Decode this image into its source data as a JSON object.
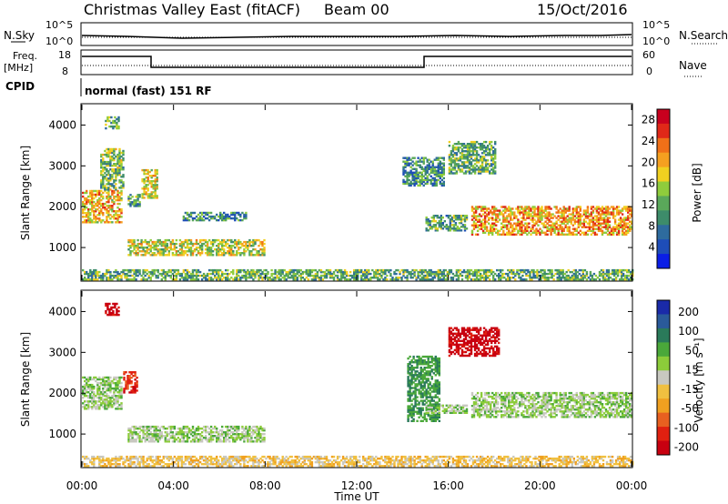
{
  "header": {
    "title": "Christmas Valley East (fitACF)",
    "beam": "Beam 00",
    "date": "15/Oct/2016"
  },
  "strip_nsky": {
    "left_label": "N.Sky",
    "right_label": "N.Search",
    "tick_top": "10^5",
    "tick_bottom": "10^0"
  },
  "strip_freq": {
    "left_label_1": "Freq.",
    "left_label_2": "[MHz]",
    "right_label": "Nave",
    "ticks_left": [
      "18",
      "8"
    ],
    "ticks_right": [
      "60",
      "0"
    ]
  },
  "cpid": {
    "label": "CPID",
    "text": "normal (fast) 151 RF"
  },
  "x_axis": {
    "label": "Time UT",
    "ticks": [
      "00:00",
      "04:00",
      "08:00",
      "12:00",
      "16:00",
      "20:00",
      "00:00"
    ]
  },
  "colors": {
    "power": [
      "#0a1ee6",
      "#1e4db8",
      "#2e6b9e",
      "#3d8c6a",
      "#5aa85a",
      "#8fcc3c",
      "#f0d020",
      "#f5a020",
      "#f07018",
      "#e02818",
      "#c8001e"
    ],
    "velocity": [
      "#1a2aa8",
      "#2a5a9a",
      "#2a7a5a",
      "#4aa83a",
      "#8ccc3a",
      "#c8c8c0",
      "#f0c040",
      "#f0a020",
      "#e86020",
      "#e02010",
      "#c80010"
    ]
  },
  "chart_data": [
    {
      "type": "heatmap",
      "title": "Power",
      "xlabel": "Time UT",
      "ylabel": "Slant Range [km]",
      "xlim": [
        0,
        24
      ],
      "ylim": [
        200,
        4500
      ],
      "yticks": [
        "1000",
        "2000",
        "3000",
        "4000"
      ],
      "colorbar": {
        "label": "Power [dB]",
        "ticks": [
          "4",
          "8",
          "12",
          "16",
          "20",
          "24",
          "28"
        ],
        "range": [
          0,
          30
        ]
      },
      "regions": [
        {
          "t": [
            0.0,
            1.7
          ],
          "r": [
            1600,
            2400
          ],
          "v": 20
        },
        {
          "t": [
            0.8,
            1.8
          ],
          "r": [
            2400,
            3400
          ],
          "v": 13
        },
        {
          "t": [
            1.0,
            1.6
          ],
          "r": [
            3900,
            4200
          ],
          "v": 12
        },
        {
          "t": [
            2.6,
            3.3
          ],
          "r": [
            2200,
            2900
          ],
          "v": 18
        },
        {
          "t": [
            2.0,
            2.5
          ],
          "r": [
            2000,
            2300
          ],
          "v": 10
        },
        {
          "t": [
            4.4,
            7.2
          ],
          "r": [
            1650,
            1850
          ],
          "v": 9
        },
        {
          "t": [
            2.0,
            8.0
          ],
          "r": [
            800,
            1200
          ],
          "v": 16
        },
        {
          "t": [
            14.0,
            15.8
          ],
          "r": [
            2500,
            3200
          ],
          "v": 9
        },
        {
          "t": [
            15.0,
            16.8
          ],
          "r": [
            1400,
            1800
          ],
          "v": 11
        },
        {
          "t": [
            16.0,
            18.0
          ],
          "r": [
            2800,
            3600
          ],
          "v": 12
        },
        {
          "t": [
            17.0,
            24.0
          ],
          "r": [
            1300,
            2000
          ],
          "v": 21
        },
        {
          "t": [
            0.0,
            24.0
          ],
          "r": [
            200,
            450
          ],
          "v": 12
        }
      ]
    },
    {
      "type": "heatmap",
      "title": "Velocity",
      "xlabel": "Time UT",
      "ylabel": "Slant Range [km]",
      "xlim": [
        0,
        24
      ],
      "ylim": [
        200,
        4500
      ],
      "yticks": [
        "1000",
        "2000",
        "3000",
        "4000"
      ],
      "colorbar": {
        "label": "Velocity [m s⁻¹]",
        "ticks": [
          "200",
          "100",
          "50",
          "15",
          "-15",
          "-50",
          "-100",
          "-200"
        ]
      },
      "regions": [
        {
          "t": [
            0.0,
            1.7
          ],
          "r": [
            1600,
            2400
          ],
          "v": 0
        },
        {
          "t": [
            1.0,
            1.6
          ],
          "r": [
            3900,
            4200
          ],
          "v": -200
        },
        {
          "t": [
            1.8,
            2.4
          ],
          "r": [
            2000,
            2500
          ],
          "v": -150
        },
        {
          "t": [
            2.0,
            8.0
          ],
          "r": [
            800,
            1200
          ],
          "v": 0
        },
        {
          "t": [
            14.2,
            15.6
          ],
          "r": [
            1300,
            2900
          ],
          "v": 30
        },
        {
          "t": [
            16.0,
            18.2
          ],
          "r": [
            2900,
            3600
          ],
          "v": -200
        },
        {
          "t": [
            15.0,
            16.8
          ],
          "r": [
            1500,
            1700
          ],
          "v": 0
        },
        {
          "t": [
            17.0,
            24.0
          ],
          "r": [
            1400,
            2000
          ],
          "v": 0
        },
        {
          "t": [
            0.0,
            24.0
          ],
          "r": [
            200,
            450
          ],
          "v": -30
        }
      ]
    }
  ]
}
